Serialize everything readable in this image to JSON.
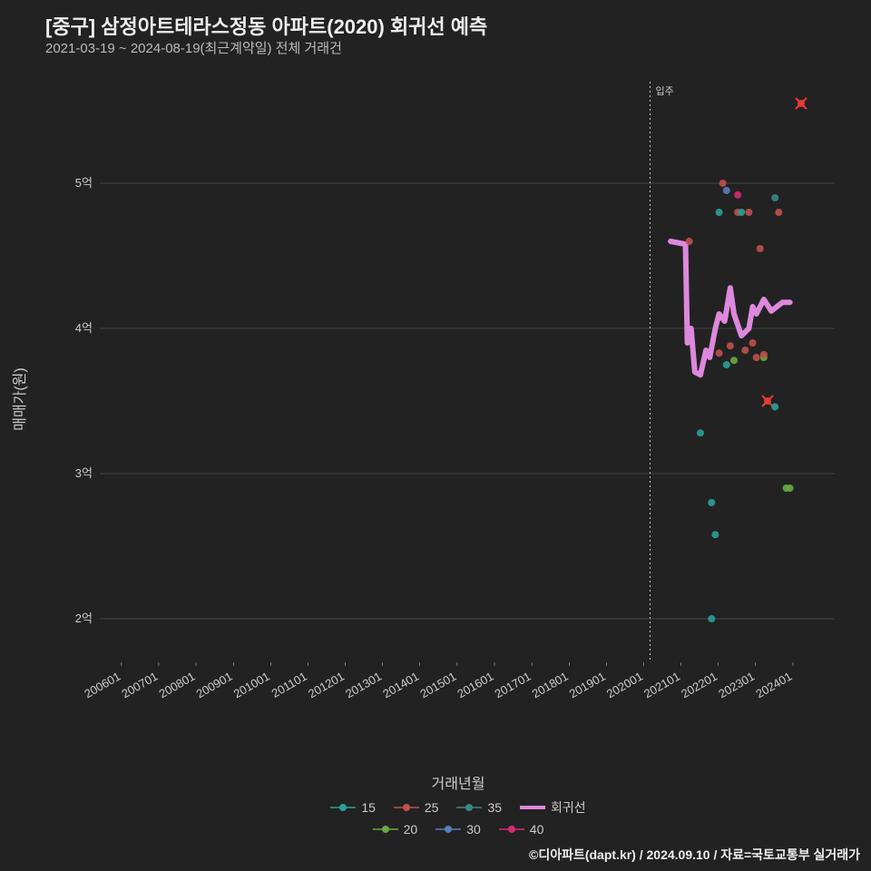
{
  "title": "[중구] 삼정아트테라스정동 아파트(2020) 회귀선 예측",
  "subtitle": "2021-03-19 ~ 2024-08-19(최근계약일) 전체 거래건",
  "xlabel": "거래년월",
  "ylabel": "매매가(원)",
  "footer": "©디아파트(dapt.kr) / 2024.09.10 / 자료=국토교통부 실거래가",
  "annotation_label": "입주",
  "chart": {
    "type": "scatter+line",
    "plot_bg": "#222222",
    "grid_color": "#666666",
    "grid_width": 0.5,
    "axis_text_color": "#cccccc",
    "axis_fontsize": 13,
    "ylim": [
      1.7,
      5.7
    ],
    "yticks": [
      2,
      3,
      4,
      5
    ],
    "ytick_labels": [
      "2억",
      "3억",
      "4억",
      "5억"
    ],
    "xlim": [
      2005.5,
      2025.2
    ],
    "xticks": [
      2006.08,
      2007.08,
      2008.08,
      2009.08,
      2010.08,
      2011.08,
      2012.08,
      2013.08,
      2014.08,
      2015.08,
      2016.08,
      2017.08,
      2018.08,
      2019.08,
      2020.08,
      2021.08,
      2022.08,
      2023.08,
      2024.08
    ],
    "xtick_labels": [
      "200601",
      "200701",
      "200801",
      "200901",
      "201001",
      "201101",
      "201201",
      "201301",
      "201401",
      "201501",
      "201601",
      "201701",
      "201801",
      "201901",
      "202001",
      "202101",
      "202201",
      "202301",
      "202401"
    ],
    "xtick_rotation": -30,
    "vline_x": 2020.25,
    "vline_color": "#cccccc",
    "vline_dash": "2,3",
    "series_colors": {
      "15": "#2aa198",
      "20": "#6aaa3f",
      "25": "#c0504d",
      "30": "#5b7dc0",
      "35": "#3b8686",
      "40": "#d62976",
      "regression": "#dd88dd"
    },
    "marker_radius": 4,
    "regression_width": 6,
    "scatter": [
      {
        "x": 2021.3,
        "y": 4.6,
        "s": "25"
      },
      {
        "x": 2021.6,
        "y": 3.28,
        "s": "15"
      },
      {
        "x": 2021.9,
        "y": 2.0,
        "s": "15"
      },
      {
        "x": 2021.9,
        "y": 2.8,
        "s": "15"
      },
      {
        "x": 2022.0,
        "y": 2.58,
        "s": "15"
      },
      {
        "x": 2022.1,
        "y": 3.83,
        "s": "25"
      },
      {
        "x": 2022.1,
        "y": 4.8,
        "s": "15"
      },
      {
        "x": 2022.2,
        "y": 5.0,
        "s": "25"
      },
      {
        "x": 2022.3,
        "y": 3.75,
        "s": "15"
      },
      {
        "x": 2022.3,
        "y": 4.95,
        "s": "30"
      },
      {
        "x": 2022.4,
        "y": 3.88,
        "s": "25"
      },
      {
        "x": 2022.5,
        "y": 3.78,
        "s": "20"
      },
      {
        "x": 2022.6,
        "y": 4.8,
        "s": "25"
      },
      {
        "x": 2022.6,
        "y": 4.92,
        "s": "40"
      },
      {
        "x": 2022.7,
        "y": 4.8,
        "s": "15"
      },
      {
        "x": 2022.8,
        "y": 3.85,
        "s": "25"
      },
      {
        "x": 2022.9,
        "y": 4.8,
        "s": "25"
      },
      {
        "x": 2023.0,
        "y": 3.9,
        "s": "25"
      },
      {
        "x": 2023.1,
        "y": 3.8,
        "s": "25"
      },
      {
        "x": 2023.2,
        "y": 4.55,
        "s": "25"
      },
      {
        "x": 2023.3,
        "y": 3.8,
        "s": "20"
      },
      {
        "x": 2023.3,
        "y": 3.82,
        "s": "25"
      },
      {
        "x": 2023.4,
        "y": 3.5,
        "s": "25",
        "crossed": true
      },
      {
        "x": 2023.6,
        "y": 3.46,
        "s": "15"
      },
      {
        "x": 2023.6,
        "y": 4.9,
        "s": "35"
      },
      {
        "x": 2023.7,
        "y": 4.8,
        "s": "25"
      },
      {
        "x": 2023.9,
        "y": 2.9,
        "s": "20"
      },
      {
        "x": 2024.0,
        "y": 2.9,
        "s": "20"
      },
      {
        "x": 2024.3,
        "y": 5.55,
        "s": "25",
        "crossed": true
      }
    ],
    "regression_line": [
      {
        "x": 2020.8,
        "y": 4.6
      },
      {
        "x": 2021.2,
        "y": 4.58
      },
      {
        "x": 2021.25,
        "y": 3.9
      },
      {
        "x": 2021.35,
        "y": 4.0
      },
      {
        "x": 2021.45,
        "y": 3.7
      },
      {
        "x": 2021.6,
        "y": 3.68
      },
      {
        "x": 2021.75,
        "y": 3.85
      },
      {
        "x": 2021.85,
        "y": 3.8
      },
      {
        "x": 2022.0,
        "y": 4.0
      },
      {
        "x": 2022.1,
        "y": 4.1
      },
      {
        "x": 2022.25,
        "y": 4.05
      },
      {
        "x": 2022.4,
        "y": 4.28
      },
      {
        "x": 2022.5,
        "y": 4.1
      },
      {
        "x": 2022.7,
        "y": 3.95
      },
      {
        "x": 2022.9,
        "y": 4.0
      },
      {
        "x": 2023.0,
        "y": 4.15
      },
      {
        "x": 2023.1,
        "y": 4.1
      },
      {
        "x": 2023.3,
        "y": 4.2
      },
      {
        "x": 2023.5,
        "y": 4.12
      },
      {
        "x": 2023.8,
        "y": 4.18
      },
      {
        "x": 2024.0,
        "y": 4.18
      }
    ]
  },
  "legend": {
    "row1": [
      {
        "label": "15",
        "color": "#2aa198",
        "type": "point"
      },
      {
        "label": "25",
        "color": "#c0504d",
        "type": "point"
      },
      {
        "label": "35",
        "color": "#3b8686",
        "type": "point"
      },
      {
        "label": "회귀선",
        "color": "#dd88dd",
        "type": "line"
      }
    ],
    "row2": [
      {
        "label": "20",
        "color": "#6aaa3f",
        "type": "point"
      },
      {
        "label": "30",
        "color": "#5b7dc0",
        "type": "point"
      },
      {
        "label": "40",
        "color": "#d62976",
        "type": "point"
      }
    ]
  }
}
